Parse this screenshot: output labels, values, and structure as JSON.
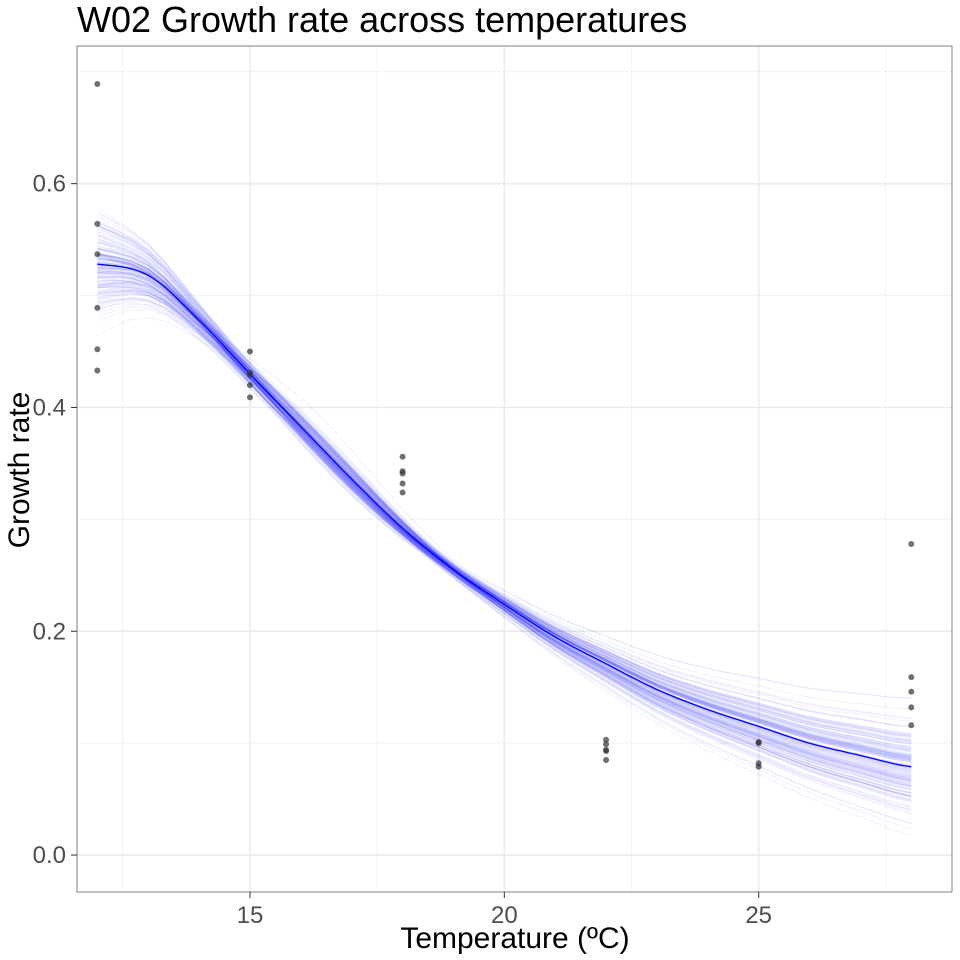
{
  "chart_data": {
    "type": "scatter",
    "title": "W02 Growth rate across temperatures",
    "xlabel": "Temperature (ºC)",
    "ylabel": "Growth rate",
    "xlim": [
      11.6,
      28.8
    ],
    "ylim": [
      -0.033,
      0.723
    ],
    "x_ticks": [
      15,
      20,
      25
    ],
    "x_tick_labels": [
      "15",
      "20",
      "25"
    ],
    "y_ticks": [
      0.0,
      0.2,
      0.4,
      0.6
    ],
    "y_tick_labels": [
      "0.0",
      "0.2",
      "0.4",
      "0.6"
    ],
    "grid": true,
    "legend": "none",
    "points": [
      {
        "x": 12,
        "y": 0.689
      },
      {
        "x": 12,
        "y": 0.564
      },
      {
        "x": 12,
        "y": 0.537
      },
      {
        "x": 12,
        "y": 0.489
      },
      {
        "x": 12,
        "y": 0.452
      },
      {
        "x": 12,
        "y": 0.433
      },
      {
        "x": 15,
        "y": 0.45
      },
      {
        "x": 15,
        "y": 0.431
      },
      {
        "x": 15,
        "y": 0.429
      },
      {
        "x": 15,
        "y": 0.42
      },
      {
        "x": 15,
        "y": 0.409
      },
      {
        "x": 18,
        "y": 0.356
      },
      {
        "x": 18,
        "y": 0.343
      },
      {
        "x": 18,
        "y": 0.341
      },
      {
        "x": 18,
        "y": 0.332
      },
      {
        "x": 18,
        "y": 0.324
      },
      {
        "x": 22,
        "y": 0.103
      },
      {
        "x": 22,
        "y": 0.099
      },
      {
        "x": 22,
        "y": 0.094
      },
      {
        "x": 22,
        "y": 0.093
      },
      {
        "x": 22,
        "y": 0.085
      },
      {
        "x": 25,
        "y": 0.101
      },
      {
        "x": 25,
        "y": 0.1
      },
      {
        "x": 25,
        "y": 0.082
      },
      {
        "x": 25,
        "y": 0.079
      },
      {
        "x": 28,
        "y": 0.278
      },
      {
        "x": 28,
        "y": 0.159
      },
      {
        "x": 28,
        "y": 0.146
      },
      {
        "x": 28,
        "y": 0.132
      },
      {
        "x": 28,
        "y": 0.116
      }
    ],
    "fit_curve": {
      "x": [
        12,
        13,
        14,
        15,
        16,
        17,
        18,
        19,
        20,
        21,
        22,
        23,
        24,
        25,
        26,
        27,
        28
      ],
      "y": [
        0.528,
        0.518,
        0.478,
        0.43,
        0.383,
        0.336,
        0.292,
        0.255,
        0.224,
        0.195,
        0.171,
        0.148,
        0.13,
        0.115,
        0.1,
        0.089,
        0.079
      ]
    },
    "colors": {
      "fit_line": "#0000ff",
      "posterior_lines": "#0000ff",
      "points": "#333333",
      "grid_major": "#ebebeb",
      "grid_minor": "#f4f4f4",
      "panel_border": "#7f7f7f"
    }
  }
}
